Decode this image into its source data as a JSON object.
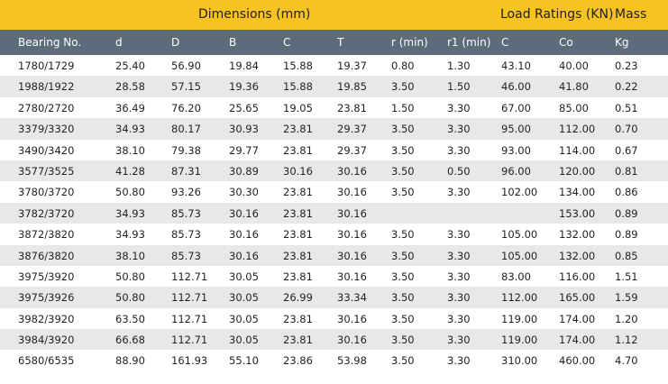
{
  "header_band": {
    "dimensions": "Dimensions (mm)",
    "load_ratings": "Load Ratings (KN)",
    "mass": "Mass"
  },
  "columns": [
    "Bearing No.",
    "d",
    "D",
    "B",
    "C",
    "T",
    "r (min)",
    "r1 (min)",
    "C",
    "Co",
    "Kg"
  ],
  "rows": [
    [
      "1780/1729",
      "25.40",
      "56.90",
      "19.84",
      "15.88",
      "19.37",
      "0.80",
      "1.30",
      "43.10",
      "40.00",
      "0.23"
    ],
    [
      "1988/1922",
      "28.58",
      "57.15",
      "19.36",
      "15.88",
      "19.85",
      "3.50",
      "1.50",
      "46.00",
      "41.80",
      "0.22"
    ],
    [
      "2780/2720",
      "36.49",
      "76.20",
      "25.65",
      "19.05",
      "23.81",
      "1.50",
      "3.30",
      "67.00",
      "85.00",
      "0.51"
    ],
    [
      "3379/3320",
      "34.93",
      "80.17",
      "30.93",
      "23.81",
      "29.37",
      "3.50",
      "3.30",
      "95.00",
      "112.00",
      "0.70"
    ],
    [
      "3490/3420",
      "38.10",
      "79.38",
      "29.77",
      "23.81",
      "29.37",
      "3.50",
      "3.30",
      "93.00",
      "114.00",
      "0.67"
    ],
    [
      "3577/3525",
      "41.28",
      "87.31",
      "30.89",
      "30.16",
      "30.16",
      "3.50",
      "0.50",
      "96.00",
      "120.00",
      "0.81"
    ],
    [
      "3780/3720",
      "50.80",
      "93.26",
      "30.30",
      "23.81",
      "30.16",
      "3.50",
      "3.30",
      "102.00",
      "134.00",
      "0.86"
    ],
    [
      "3782/3720",
      "34.93",
      "85.73",
      "30.16",
      "23.81",
      "30.16",
      "",
      "",
      "",
      "153.00",
      "0.89"
    ],
    [
      "3872/3820",
      "34.93",
      "85.73",
      "30.16",
      "23.81",
      "30.16",
      "3.50",
      "3.30",
      "105.00",
      "132.00",
      "0.89"
    ],
    [
      "3876/3820",
      "38.10",
      "85.73",
      "30.16",
      "23.81",
      "30.16",
      "3.50",
      "3.30",
      "105.00",
      "132.00",
      "0.85"
    ],
    [
      "3975/3920",
      "50.80",
      "112.71",
      "30.05",
      "23.81",
      "30.16",
      "3.50",
      "3.30",
      "83.00",
      "116.00",
      "1.51"
    ],
    [
      "3975/3926",
      "50.80",
      "112.71",
      "30.05",
      "26.99",
      "33.34",
      "3.50",
      "3.30",
      "112.00",
      "165.00",
      "1.59"
    ],
    [
      "3982/3920",
      "63.50",
      "112.71",
      "30.05",
      "23.81",
      "30.16",
      "3.50",
      "3.30",
      "119.00",
      "174.00",
      "1.20"
    ],
    [
      "3984/3920",
      "66.68",
      "112.71",
      "30.05",
      "23.81",
      "30.16",
      "3.50",
      "3.30",
      "119.00",
      "174.00",
      "1.12"
    ],
    [
      "6580/6535",
      "88.90",
      "161.93",
      "55.10",
      "23.86",
      "53.98",
      "3.50",
      "3.30",
      "310.00",
      "460.00",
      "4.70"
    ]
  ],
  "colors": {
    "band": "#f6c322",
    "header": "#5d6b7a",
    "row_alt": "#e8e8e8"
  }
}
